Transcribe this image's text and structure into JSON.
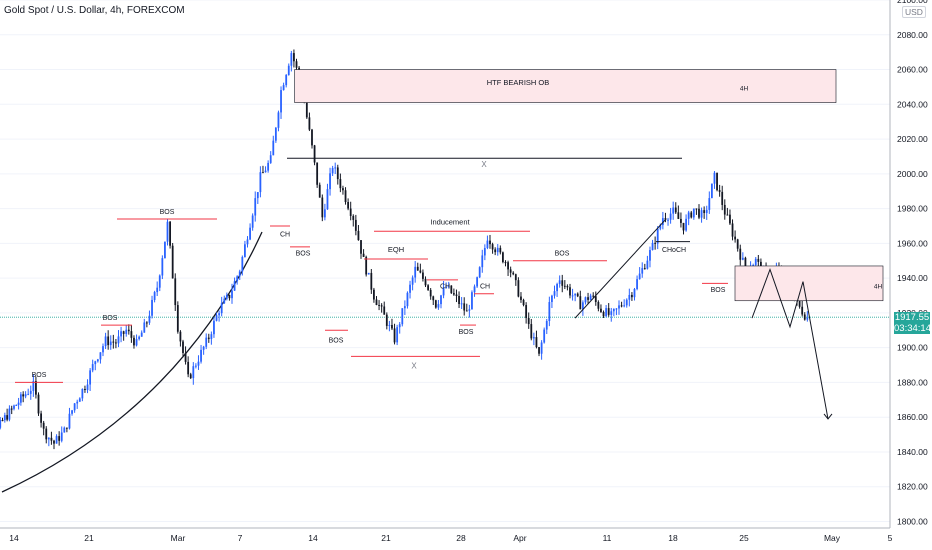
{
  "header": {
    "title": "Gold Spot / U.S. Dollar, 4h, FOREXCOM"
  },
  "price_axis": {
    "currency": "USD",
    "last_price": "1917.55",
    "countdown": "03:34:14"
  },
  "colors": {
    "up": "#2962ff",
    "down": "#131722",
    "accent_red": "#f23645",
    "last_price_bg": "#26a69a",
    "ob_fill": "#fde7ea"
  },
  "chart_data": {
    "type": "candlestick",
    "title": "Gold Spot / U.S. Dollar, 4h, FOREXCOM",
    "ylim": [
      1800,
      2100
    ],
    "y_ticks": [
      "2100.00",
      "2080.00",
      "2060.00",
      "2040.00",
      "2020.00",
      "2000.00",
      "1980.00",
      "1960.00",
      "1940.00",
      "1920.00",
      "1900.00",
      "1880.00",
      "1860.00",
      "1840.00",
      "1820.00",
      "1800.00"
    ],
    "x_ticks": [
      "14",
      "21",
      "Mar",
      "7",
      "14",
      "21",
      "28",
      "Apr",
      "11",
      "18",
      "25",
      "May",
      "5"
    ],
    "price_path": [
      {
        "t": "Feb 10",
        "p": 1822
      },
      {
        "t": "Feb 11",
        "p": 1835
      },
      {
        "t": "Feb 13",
        "p": 1858
      },
      {
        "t": "Feb 15",
        "p": 1872
      },
      {
        "t": "Feb 16",
        "p": 1878
      },
      {
        "t": "Feb 17",
        "p": 1852
      },
      {
        "t": "Feb 18",
        "p": 1845
      },
      {
        "t": "Feb 19",
        "p": 1852
      },
      {
        "t": "Feb 20",
        "p": 1868
      },
      {
        "t": "Feb 21",
        "p": 1878
      },
      {
        "t": "Feb 22",
        "p": 1893
      },
      {
        "t": "Feb 23",
        "p": 1904
      },
      {
        "t": "Feb 24",
        "p": 1903
      },
      {
        "t": "Feb 25",
        "p": 1910
      },
      {
        "t": "Feb 26",
        "p": 1902
      },
      {
        "t": "Feb 27",
        "p": 1915
      },
      {
        "t": "Feb 28",
        "p": 1935
      },
      {
        "t": "Mar 1",
        "p": 1971
      },
      {
        "t": "Mar 2",
        "p": 1912
      },
      {
        "t": "Mar 3",
        "p": 1882
      },
      {
        "t": "Mar 4",
        "p": 1894
      },
      {
        "t": "Mar 5",
        "p": 1906
      },
      {
        "t": "Mar 6",
        "p": 1922
      },
      {
        "t": "Mar 7",
        "p": 1930
      },
      {
        "t": "Mar 8",
        "p": 1945
      },
      {
        "t": "Mar 9",
        "p": 1972
      },
      {
        "t": "Mar 10",
        "p": 1998
      },
      {
        "t": "Mar 11",
        "p": 2008
      },
      {
        "t": "Mar 12",
        "p": 2048
      },
      {
        "t": "Mar 13",
        "p": 2070
      },
      {
        "t": "Mar 14",
        "p": 2050
      },
      {
        "t": "Mar 15",
        "p": 2015
      },
      {
        "t": "Mar 16",
        "p": 1975
      },
      {
        "t": "Mar 17",
        "p": 2005
      },
      {
        "t": "Mar 18",
        "p": 1990
      },
      {
        "t": "Mar 19",
        "p": 1975
      },
      {
        "t": "Mar 20",
        "p": 1950
      },
      {
        "t": "Mar 21",
        "p": 1930
      },
      {
        "t": "Mar 22",
        "p": 1918
      },
      {
        "t": "Mar 23",
        "p": 1905
      },
      {
        "t": "Mar 24",
        "p": 1925
      },
      {
        "t": "Mar 25",
        "p": 1945
      },
      {
        "t": "Mar 26",
        "p": 1938
      },
      {
        "t": "Mar 27",
        "p": 1925
      },
      {
        "t": "Mar 28",
        "p": 1935
      },
      {
        "t": "Mar 29",
        "p": 1928
      },
      {
        "t": "Mar 30",
        "p": 1920
      },
      {
        "t": "Mar 31",
        "p": 1938
      },
      {
        "t": "Apr 1",
        "p": 1964
      },
      {
        "t": "Apr 2",
        "p": 1955
      },
      {
        "t": "Apr 3",
        "p": 1948
      },
      {
        "t": "Apr 4",
        "p": 1932
      },
      {
        "t": "Apr 5",
        "p": 1912
      },
      {
        "t": "Apr 6",
        "p": 1895
      },
      {
        "t": "Apr 7",
        "p": 1925
      },
      {
        "t": "Apr 8",
        "p": 1940
      },
      {
        "t": "Apr 9",
        "p": 1932
      },
      {
        "t": "Apr 10",
        "p": 1925
      },
      {
        "t": "Apr 11",
        "p": 1930
      },
      {
        "t": "Apr 12",
        "p": 1922
      },
      {
        "t": "Apr 13",
        "p": 1918
      },
      {
        "t": "Apr 14",
        "p": 1925
      },
      {
        "t": "Apr 15",
        "p": 1932
      },
      {
        "t": "Apr 16",
        "p": 1945
      },
      {
        "t": "Apr 17",
        "p": 1958
      },
      {
        "t": "Apr 18",
        "p": 1975
      },
      {
        "t": "Apr 19",
        "p": 1978
      },
      {
        "t": "Apr 20",
        "p": 1970
      },
      {
        "t": "Apr 21",
        "p": 1980
      },
      {
        "t": "Apr 22",
        "p": 1975
      },
      {
        "t": "Apr 23",
        "p": 1998
      },
      {
        "t": "Apr 24",
        "p": 1978
      },
      {
        "t": "Apr 25",
        "p": 1962
      },
      {
        "t": "Apr 26",
        "p": 1945
      },
      {
        "t": "Apr 27",
        "p": 1950
      },
      {
        "t": "Apr 28",
        "p": 1940
      },
      {
        "t": "Apr 29",
        "p": 1945
      },
      {
        "t": "Apr 30",
        "p": 1935
      },
      {
        "t": "May 1",
        "p": 1925
      },
      {
        "t": "May 2",
        "p": 1917
      }
    ],
    "annotations": {
      "htf_box": {
        "label": "HTF  BEARISH OB",
        "tag": "4H",
        "from": "Mar 13",
        "to": "Apr 30",
        "y_top": 2060,
        "y_bottom": 2041
      },
      "ltf_box": {
        "tag": "4H",
        "from": "Apr 30",
        "to": "May 5",
        "y_top": 1947,
        "y_bottom": 1927
      },
      "range_high": {
        "label": "X",
        "from": "Mar 15",
        "to": "Apr 21",
        "y": 2009
      },
      "range_low": {
        "label": "X",
        "from": "Mar 20",
        "to": "Apr 5",
        "y": 1895
      },
      "inducement": {
        "label": "Inducement",
        "from": "Mar 21",
        "to": "Apr 6",
        "y": 1967
      },
      "eqh": {
        "label": "EQH",
        "y": 1951
      },
      "bos_labels": [
        "BOS",
        "BOS",
        "BOS",
        "BOS",
        "BOS",
        "BOS",
        "BOS",
        "BOS"
      ],
      "ch_labels": [
        "CH",
        "CH",
        "CH"
      ],
      "choch_label": "CHoCH",
      "projection": [
        1917,
        1945,
        1912,
        1938,
        1859
      ]
    }
  }
}
